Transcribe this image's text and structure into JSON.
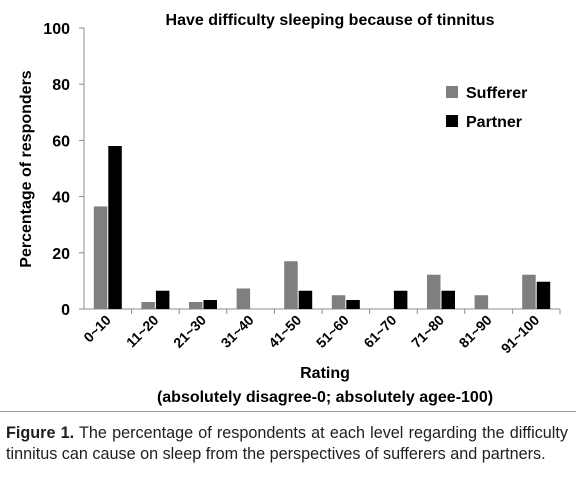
{
  "chart_data": {
    "type": "bar",
    "title": "Have difficulty sleeping because of tinnitus",
    "ylabel": "Percentage of responders",
    "xlabel": "Rating",
    "xlabel_sub": "(absolutely disagree-0; absolutely agee-100)",
    "ylim": [
      0,
      100
    ],
    "yticks": [
      0,
      20,
      40,
      60,
      80,
      100
    ],
    "grid": false,
    "legend_position": "top-right",
    "categories": [
      "0~10",
      "11~20",
      "21~30",
      "31~40",
      "41~50",
      "51~60",
      "61~70",
      "71~80",
      "81~90",
      "91~100"
    ],
    "series": [
      {
        "name": "Sufferer",
        "color": "#7f7f7f",
        "values": [
          36.5,
          2.5,
          2.5,
          7.3,
          17.0,
          4.9,
          0,
          12.2,
          4.9,
          12.2
        ]
      },
      {
        "name": "Partner",
        "color": "#000000",
        "values": [
          58.0,
          6.5,
          3.2,
          0,
          6.5,
          3.2,
          6.5,
          6.5,
          0,
          9.7
        ]
      }
    ]
  },
  "caption": {
    "label": "Figure 1.",
    "text": " The percentage of respondents at each level regarding the difficulty tinnitus can cause on sleep from the perspectives of sufferers and partners."
  }
}
